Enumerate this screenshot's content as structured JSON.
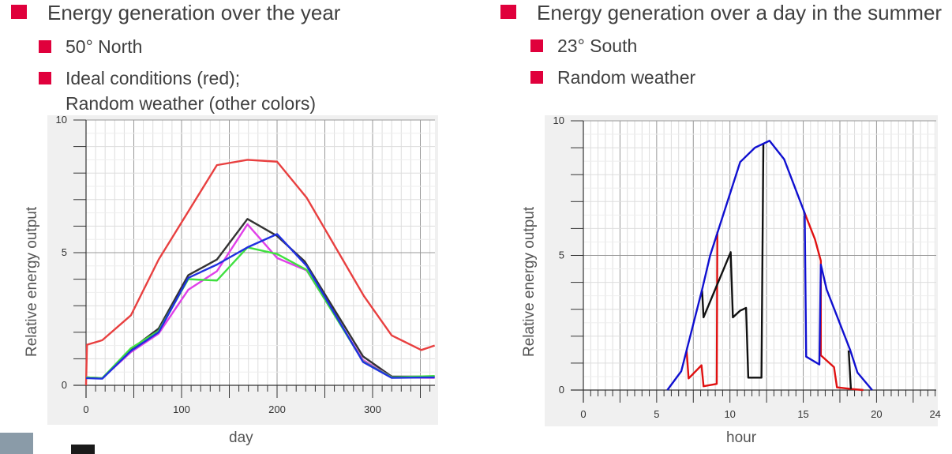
{
  "left": {
    "heading": "Energy generation over the year",
    "bullets": [
      "50° North",
      "Ideal conditions (red);",
      "Random weather (other colors)"
    ]
  },
  "right": {
    "heading": "Energy generation over a day in the summer",
    "bullets": [
      "23° South",
      "Random weather"
    ]
  },
  "colors": {
    "bullet": "#e0003c",
    "text": "#404040"
  },
  "chart_data": [
    {
      "type": "line",
      "xlabel": "day",
      "ylabel": "Relative energy output",
      "xlim": [
        0,
        365
      ],
      "ylim": [
        0,
        10
      ],
      "xticks": [
        0,
        100,
        200,
        300
      ],
      "yticks": [
        0,
        5,
        10
      ],
      "grid": true,
      "series": [
        {
          "color": "#e84040",
          "x": [
            0,
            1,
            17,
            47,
            76,
            137,
            169,
            200,
            231,
            291,
            320,
            351,
            365
          ],
          "y": [
            0,
            1.53,
            1.7,
            2.64,
            4.74,
            8.3,
            8.5,
            8.43,
            7.07,
            3.36,
            1.88,
            1.33,
            1.5
          ]
        },
        {
          "color": "#333333",
          "x": [
            0,
            17,
            47,
            76,
            107,
            137,
            169,
            200,
            229,
            290,
            320,
            365
          ],
          "y": [
            0.3,
            0.27,
            1.35,
            2.14,
            4.15,
            4.74,
            6.27,
            5.63,
            4.67,
            1.09,
            0.33,
            0.33
          ]
        },
        {
          "color": "#e040e8",
          "x": [
            0,
            17,
            47,
            76,
            107,
            137,
            169,
            200,
            231,
            290,
            320,
            365
          ],
          "y": [
            0.3,
            0.27,
            1.25,
            1.95,
            3.6,
            4.3,
            6.07,
            4.8,
            4.33,
            0.95,
            0.3,
            0.28
          ]
        },
        {
          "color": "#40e040",
          "x": [
            0,
            17,
            47,
            76,
            107,
            137,
            169,
            200,
            231,
            290,
            320,
            365
          ],
          "y": [
            0.3,
            0.27,
            1.4,
            2.05,
            4.0,
            3.95,
            5.2,
            4.95,
            4.35,
            0.9,
            0.3,
            0.35
          ]
        },
        {
          "color": "#2030e0",
          "x": [
            0,
            17,
            47,
            76,
            107,
            137,
            169,
            200,
            231,
            290,
            320,
            365
          ],
          "y": [
            0.27,
            0.25,
            1.3,
            2.0,
            4.05,
            4.55,
            5.2,
            5.7,
            4.5,
            0.88,
            0.28,
            0.3
          ]
        }
      ]
    },
    {
      "type": "line",
      "xlabel": "hour",
      "ylabel": "Relative energy output",
      "xlim": [
        0,
        24
      ],
      "ylim": [
        0,
        10
      ],
      "xticks": [
        0,
        5,
        10,
        15,
        20,
        24
      ],
      "yticks": [
        0,
        5,
        10
      ],
      "grid": true,
      "series": [
        {
          "color": "#e01010",
          "x": [
            7.04,
            7.18,
            8.06,
            8.2,
            9.1,
            9.14
          ],
          "y": [
            1.49,
            0.43,
            0.92,
            0.14,
            0.23,
            5.88
          ]
        },
        {
          "color": "#e01010",
          "x": [
            15.1,
            15.8,
            16.2,
            16.2,
            17.1,
            17.3,
            18.3,
            19.1
          ],
          "y": [
            6.57,
            5.6,
            4.8,
            1.29,
            0.85,
            0.1,
            0.04,
            0
          ]
        },
        {
          "color": "#111111",
          "x": [
            8.1,
            8.2,
            10.05,
            10.2,
            10.7,
            11.1,
            11.25,
            12.15,
            12.28
          ],
          "y": [
            3.69,
            2.7,
            5.12,
            2.7,
            2.95,
            3.05,
            0.46,
            0.46,
            9.16
          ]
        },
        {
          "color": "#111111",
          "x": [
            18.1,
            18.25
          ],
          "y": [
            1.47,
            0.04
          ]
        },
        {
          "color": "#1010d0",
          "x": [
            5.73,
            6.68,
            8.1,
            8.65,
            10.7,
            11.7,
            12.7,
            13.7,
            15.1,
            15.2,
            16.1,
            16.2,
            16.6,
            18.2,
            18.7,
            19.7
          ],
          "y": [
            0,
            0.7,
            3.73,
            5.0,
            8.47,
            9.0,
            9.26,
            8.57,
            6.57,
            1.24,
            0.95,
            4.66,
            3.73,
            1.49,
            0.65,
            0
          ]
        }
      ]
    }
  ]
}
